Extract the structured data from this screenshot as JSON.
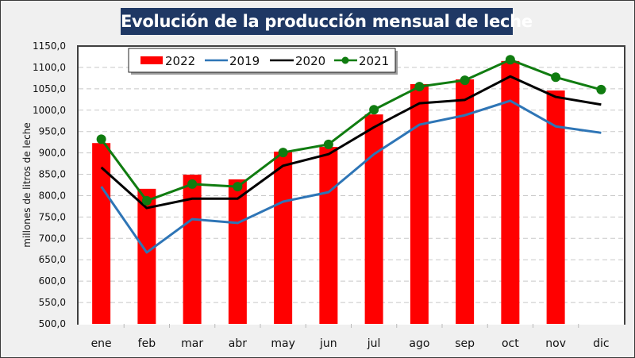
{
  "chart_data": {
    "type": "bar",
    "title": "Evolución de la producción mensual de leche",
    "xlabel": "",
    "ylabel": "millones de litros de leche",
    "ylim": [
      500,
      1150
    ],
    "ytick_step": 50,
    "ytick_labels": [
      "500,0",
      "550,0",
      "600,0",
      "650,0",
      "700,0",
      "750,0",
      "800,0",
      "850,0",
      "900,0",
      "950,0",
      "1000,0",
      "1050,0",
      "1100,0",
      "1150,0"
    ],
    "grid": true,
    "legend_position": "top-left",
    "categories": [
      "ene",
      "feb",
      "mar",
      "abr",
      "may",
      "jun",
      "jul",
      "ago",
      "sep",
      "oct",
      "nov",
      "dic"
    ],
    "series": [
      {
        "name": "2022",
        "kind": "bar",
        "color": "#ff0000",
        "values": [
          923,
          816,
          849,
          838,
          903,
          914,
          990,
          1061,
          1072,
          1115,
          1046,
          null
        ]
      },
      {
        "name": "2019",
        "kind": "line",
        "color": "#2e75b6",
        "marker": false,
        "values": [
          821,
          667,
          745,
          736,
          786,
          808,
          897,
          966,
          988,
          1022,
          962,
          947
        ]
      },
      {
        "name": "2020",
        "kind": "line",
        "color": "#000000",
        "marker": false,
        "values": [
          866,
          771,
          793,
          793,
          870,
          897,
          960,
          1016,
          1024,
          1079,
          1031,
          1013
        ]
      },
      {
        "name": "2021",
        "kind": "line",
        "color": "#107c10",
        "marker": true,
        "values": [
          932,
          788,
          827,
          821,
          901,
          920,
          1001,
          1055,
          1070,
          1118,
          1077,
          1048
        ]
      }
    ]
  }
}
